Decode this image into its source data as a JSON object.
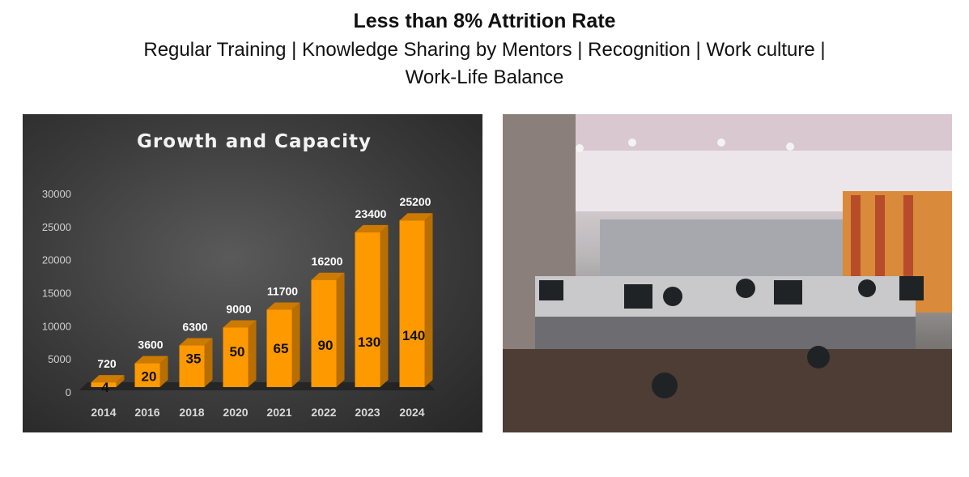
{
  "header": {
    "title": "Less than 8% Attrition Rate",
    "line1": "Regular Training | Knowledge Sharing by Mentors | Recognition  | Work culture |",
    "line2": "Work-Life Balance"
  },
  "chart_data": {
    "type": "bar",
    "title": "Growth and Capacity",
    "categories": [
      "2014",
      "2016",
      "2018",
      "2020",
      "2021",
      "2022",
      "2023",
      "2024"
    ],
    "series": [
      {
        "values": [
          720,
          3600,
          6300,
          9000,
          11700,
          16200,
          23400,
          25200
        ]
      },
      {
        "values": [
          4,
          20,
          35,
          50,
          65,
          90,
          130,
          140
        ]
      }
    ],
    "yticks": [
      "0",
      "5000",
      "10000",
      "15000",
      "20000",
      "25000",
      "30000"
    ],
    "ylim": [
      0,
      30000
    ],
    "grid": false,
    "legend": "none",
    "colors": {
      "bar": "#ff9900",
      "bar_side": "#b86e00",
      "bar_top": "#cc7a00",
      "background": "#3c3c3c"
    }
  },
  "photo": {
    "subject": "office-workspace-photo"
  }
}
